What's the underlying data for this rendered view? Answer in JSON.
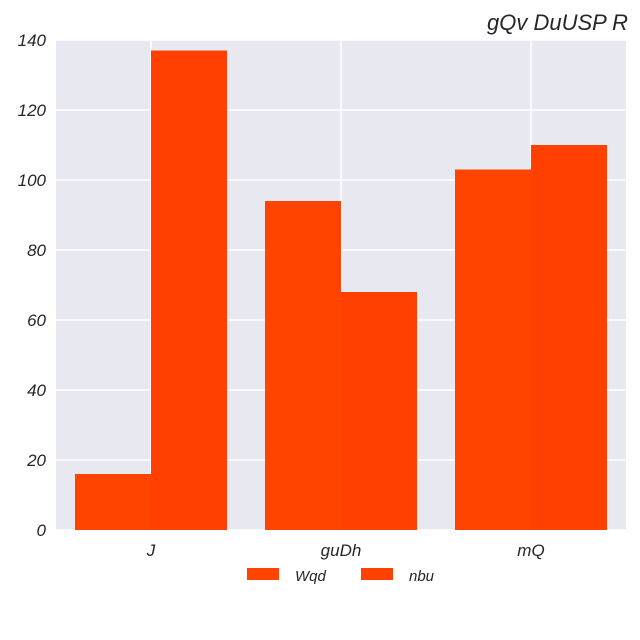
{
  "chart_data": {
    "type": "bar",
    "title": "gQv  DuUSP R",
    "categories": [
      "J",
      "guDh",
      "mQ"
    ],
    "series": [
      {
        "name": "Wqd",
        "values": [
          16,
          94,
          103
        ],
        "color": "#ff4400"
      },
      {
        "name": "nbu",
        "values": [
          137,
          68,
          110
        ],
        "color": "#ff4000"
      }
    ],
    "ylim": [
      0,
      140
    ],
    "yticks": [
      "0",
      "20",
      "40",
      "60",
      "80",
      "100",
      "120",
      "140"
    ],
    "xlabel": "",
    "ylabel": "",
    "grid": true,
    "legend_position": "bottom-center",
    "plot_background": "#e8e8f0",
    "grid_color": "#ffffff"
  }
}
